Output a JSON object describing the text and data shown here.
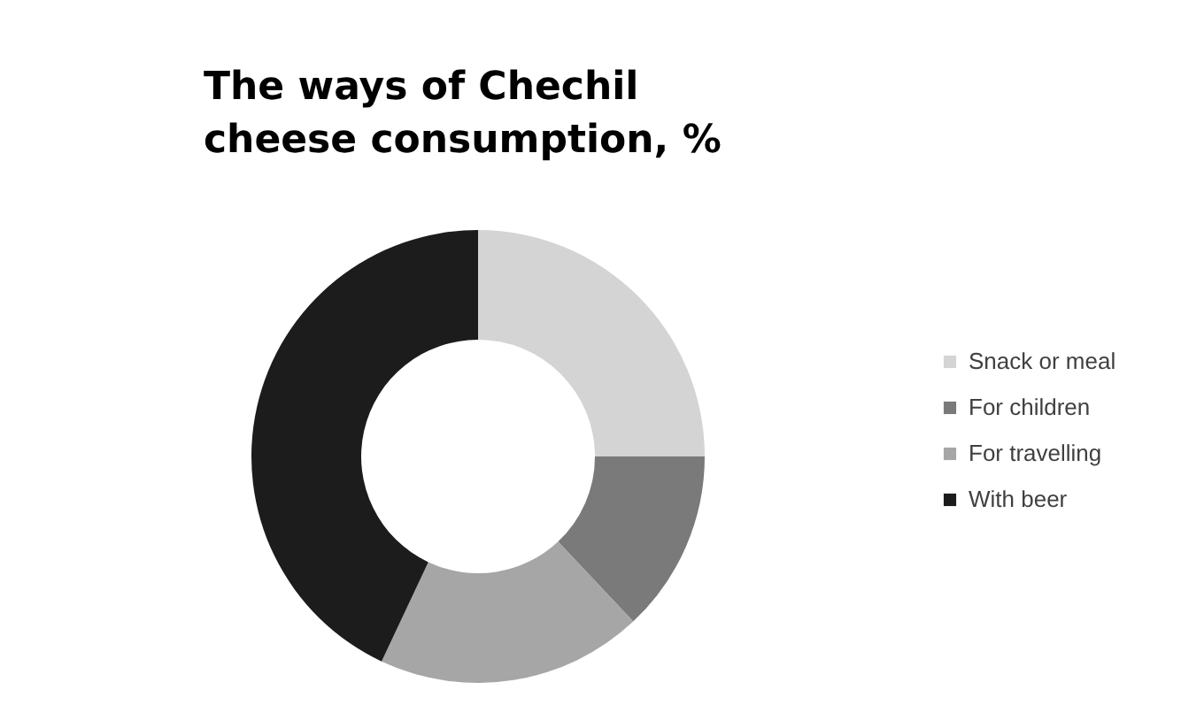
{
  "chart_data": {
    "type": "donut",
    "title": "The ways of Chechil cheese consumption, %",
    "categories": [
      "Snack or meal",
      "For children",
      "For travelling",
      "With beer"
    ],
    "values": [
      25,
      13,
      19,
      43
    ],
    "colors": [
      "#d4d4d4",
      "#7a7a7a",
      "#a6a6a6",
      "#1c1c1c"
    ],
    "legend": "right"
  }
}
